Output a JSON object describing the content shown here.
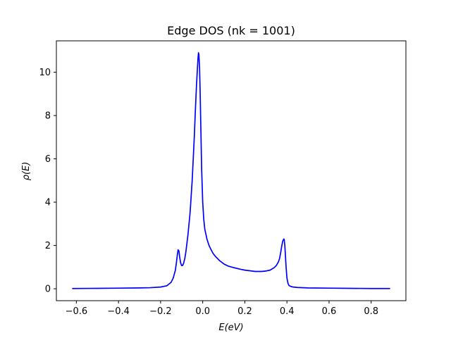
{
  "chart_data": {
    "type": "line",
    "title": "Edge DOS (nk = 1001)",
    "xlabel": "E(eV)",
    "ylabel": "ρ(E)",
    "xlim": [
      -0.695,
      0.965
    ],
    "ylim": [
      -0.55,
      11.45
    ],
    "xticks": [
      -0.6,
      -0.4,
      -0.2,
      0.0,
      0.2,
      0.4,
      0.6,
      0.8
    ],
    "xtick_labels": [
      "−0.6",
      "−0.4",
      "−0.2",
      "0.0",
      "0.2",
      "0.4",
      "0.6",
      "0.8"
    ],
    "yticks": [
      0,
      2,
      4,
      6,
      8,
      10
    ],
    "ytick_labels": [
      "0",
      "2",
      "4",
      "6",
      "8",
      "10"
    ],
    "grid": false,
    "legend": "none",
    "series": [
      {
        "color": "#0000ff",
        "x": [
          -0.62,
          -0.5,
          -0.4,
          -0.3,
          -0.25,
          -0.2,
          -0.17,
          -0.15,
          -0.14,
          -0.13,
          -0.125,
          -0.12,
          -0.117,
          -0.113,
          -0.11,
          -0.105,
          -0.1,
          -0.095,
          -0.09,
          -0.085,
          -0.08,
          -0.07,
          -0.06,
          -0.05,
          -0.04,
          -0.035,
          -0.03,
          -0.025,
          -0.022,
          -0.02,
          -0.018,
          -0.015,
          -0.012,
          -0.01,
          -0.007,
          -0.005,
          0.0,
          0.005,
          0.01,
          0.02,
          0.03,
          0.04,
          0.05,
          0.06,
          0.08,
          0.1,
          0.12,
          0.15,
          0.18,
          0.2,
          0.25,
          0.28,
          0.3,
          0.32,
          0.34,
          0.35,
          0.36,
          0.365,
          0.37,
          0.375,
          0.38,
          0.385,
          0.387,
          0.39,
          0.393,
          0.396,
          0.4,
          0.405,
          0.41,
          0.42,
          0.43,
          0.45,
          0.5,
          0.6,
          0.7,
          0.8,
          0.89
        ],
        "y": [
          0.01,
          0.02,
          0.03,
          0.04,
          0.05,
          0.08,
          0.14,
          0.3,
          0.5,
          0.85,
          1.2,
          1.6,
          1.8,
          1.75,
          1.5,
          1.2,
          1.07,
          1.08,
          1.2,
          1.4,
          1.7,
          2.5,
          3.5,
          5.0,
          7.0,
          8.2,
          9.3,
          10.2,
          10.7,
          10.9,
          10.8,
          10.2,
          9.0,
          8.0,
          6.5,
          5.5,
          4.0,
          3.2,
          2.75,
          2.3,
          2.0,
          1.8,
          1.62,
          1.5,
          1.3,
          1.15,
          1.05,
          0.97,
          0.9,
          0.86,
          0.8,
          0.8,
          0.82,
          0.86,
          0.98,
          1.08,
          1.25,
          1.4,
          1.65,
          1.95,
          2.2,
          2.3,
          2.28,
          2.0,
          1.5,
          1.0,
          0.5,
          0.25,
          0.15,
          0.1,
          0.08,
          0.06,
          0.04,
          0.03,
          0.02,
          0.01,
          0.01
        ]
      }
    ]
  }
}
